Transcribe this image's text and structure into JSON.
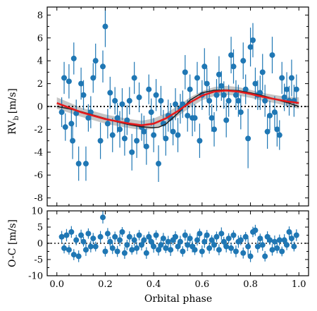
{
  "chart_data": [
    {
      "type": "scatter",
      "panel": "top",
      "ylabel_main": "RV",
      "ylabel_sub": "b",
      "ylabel_unit": "[m/s]",
      "xlim": [
        -0.04,
        1.04
      ],
      "ylim": [
        -8.7,
        8.7
      ],
      "yticks": [
        -8,
        -6,
        -4,
        -2,
        0,
        2,
        4,
        6,
        8
      ],
      "grid": false,
      "colors": {
        "points": "#1f77b4",
        "model": "#e41a1c",
        "keplerian": "#222222",
        "band": "#bbbbbb",
        "zero": "#000000"
      },
      "reference_line": {
        "y": 0,
        "style": "dotted"
      },
      "series": [
        {
          "kind": "data",
          "x": [
            0.02,
            0.03,
            0.035,
            0.05,
            0.06,
            0.065,
            0.07,
            0.08,
            0.09,
            0.1,
            0.11,
            0.12,
            0.13,
            0.14,
            0.15,
            0.16,
            0.18,
            0.19,
            0.2,
            0.21,
            0.22,
            0.23,
            0.24,
            0.25,
            0.26,
            0.27,
            0.28,
            0.29,
            0.3,
            0.31,
            0.32,
            0.33,
            0.34,
            0.35,
            0.36,
            0.37,
            0.38,
            0.39,
            0.4,
            0.41,
            0.42,
            0.43,
            0.44,
            0.45,
            0.46,
            0.47,
            0.48,
            0.49,
            0.5,
            0.51,
            0.52,
            0.53,
            0.54,
            0.55,
            0.56,
            0.57,
            0.58,
            0.59,
            0.6,
            0.61,
            0.62,
            0.63,
            0.64,
            0.65,
            0.66,
            0.67,
            0.68,
            0.69,
            0.7,
            0.71,
            0.72,
            0.73,
            0.74,
            0.75,
            0.76,
            0.77,
            0.78,
            0.79,
            0.8,
            0.81,
            0.82,
            0.83,
            0.84,
            0.85,
            0.86,
            0.87,
            0.88,
            0.89,
            0.9,
            0.91,
            0.92,
            0.93,
            0.94,
            0.95,
            0.96,
            0.97,
            0.98,
            0.99
          ],
          "y": [
            -0.5,
            2.5,
            -1.8,
            2.2,
            -1.5,
            -3,
            4.2,
            -0.6,
            -5,
            2,
            1,
            -5,
            -1,
            -0.5,
            2.5,
            4,
            -3,
            3.5,
            7,
            -1.5,
            1.2,
            -2.5,
            0.5,
            -1,
            -2,
            0.2,
            -2.8,
            -1.2,
            0.5,
            -4,
            2.5,
            -3,
            0.8,
            -1.8,
            -2.2,
            -3.5,
            1.5,
            -0.5,
            -2.5,
            1,
            -5,
            0.5,
            -1.5,
            -2.8,
            -0.8,
            -1,
            -2.2,
            0.2,
            -2.5,
            -0.2,
            0.2,
            3,
            -0.8,
            1.5,
            -1,
            -1,
            2.5,
            -3,
            1,
            3.5,
            2,
            0.5,
            -1,
            -2,
            1,
            2.8,
            1.8,
            1,
            -1.2,
            0.5,
            4.5,
            3.5,
            1,
            0.5,
            -0.5,
            4,
            1.5,
            -2.8,
            5.2,
            5.8,
            2,
            1,
            1.2,
            3,
            0.5,
            -2.2,
            -0.8,
            4.5,
            -0.5,
            -2,
            -2.5,
            2.5,
            0.8,
            1.5,
            0.5,
            2.5,
            0.5,
            1.5
          ],
          "yerr": [
            1.3,
            1.4,
            1.2,
            1.5,
            1.3,
            1.6,
            1.4,
            1.2,
            1.5,
            1.4,
            1.3,
            1.5,
            1.2,
            1.4,
            1.3,
            1.5,
            1.6,
            1.4,
            1.8,
            1.3,
            1.4,
            1.5,
            1.2,
            1.3,
            1.6,
            1.4,
            1.5,
            1.3,
            1.2,
            1.6,
            1.4,
            1.5,
            1.3,
            1.2,
            1.4,
            1.6,
            1.3,
            1.2,
            1.5,
            1.4,
            1.6,
            1.3,
            1.2,
            1.5,
            1.4,
            1.3,
            1.2,
            1.4,
            1.5,
            1.3,
            1.2,
            1.5,
            1.4,
            1.3,
            1.6,
            1.2,
            1.4,
            1.5,
            1.3,
            1.6,
            1.4,
            1.3,
            1.2,
            1.5,
            1.4,
            1.6,
            1.3,
            1.2,
            1.5,
            1.4,
            1.6,
            1.5,
            1.3,
            1.4,
            1.5,
            1.6,
            1.3,
            2.6,
            1.7,
            1.5,
            1.4,
            1.3,
            1.5,
            1.6,
            1.4,
            1.5,
            1.3,
            1.6,
            1.4,
            1.5,
            1.3,
            1.4,
            1.2,
            1.5,
            1.3,
            1.6,
            1.4,
            1.3
          ]
        },
        {
          "kind": "model",
          "x": [
            0.0,
            0.05,
            0.1,
            0.15,
            0.2,
            0.25,
            0.3,
            0.35,
            0.4,
            0.45,
            0.5,
            0.55,
            0.6,
            0.65,
            0.7,
            0.75,
            0.8,
            0.85,
            0.9,
            0.95,
            1.0
          ],
          "y": [
            0.3,
            -0.1,
            -0.5,
            -0.8,
            -1.1,
            -1.3,
            -1.5,
            -1.65,
            -1.5,
            -1.05,
            -0.4,
            0.35,
            0.95,
            1.3,
            1.4,
            1.3,
            1.1,
            0.85,
            0.65,
            0.45,
            0.3
          ]
        },
        {
          "kind": "keplerian",
          "x": [
            0.0,
            0.05,
            0.1,
            0.15,
            0.2,
            0.25,
            0.3,
            0.35,
            0.4,
            0.42,
            0.45,
            0.5,
            0.55,
            0.6,
            0.65,
            0.7,
            0.75,
            0.8,
            0.85,
            0.9,
            0.95,
            1.0
          ],
          "y": [
            0.0,
            -0.2,
            -0.45,
            -0.75,
            -1.05,
            -1.35,
            -1.6,
            -1.78,
            -1.85,
            -1.82,
            -1.55,
            -0.6,
            0.55,
            1.2,
            1.42,
            1.45,
            1.38,
            1.2,
            0.95,
            0.65,
            0.35,
            0.0
          ]
        },
        {
          "kind": "band",
          "x": [
            0.0,
            0.05,
            0.1,
            0.15,
            0.2,
            0.25,
            0.3,
            0.35,
            0.4,
            0.45,
            0.5,
            0.55,
            0.6,
            0.65,
            0.7,
            0.75,
            0.8,
            0.85,
            0.9,
            0.95,
            1.0
          ],
          "lower": [
            -0.2,
            -0.55,
            -0.9,
            -1.2,
            -1.5,
            -1.7,
            -1.9,
            -2.05,
            -1.95,
            -1.5,
            -0.85,
            -0.1,
            0.55,
            0.9,
            1.0,
            0.95,
            0.75,
            0.5,
            0.3,
            0.05,
            -0.2
          ],
          "upper": [
            0.8,
            0.35,
            -0.1,
            -0.4,
            -0.7,
            -0.9,
            -1.1,
            -1.25,
            -1.05,
            -0.6,
            0.05,
            0.8,
            1.35,
            1.7,
            1.8,
            1.7,
            1.45,
            1.2,
            1.0,
            0.85,
            0.8
          ]
        }
      ]
    },
    {
      "type": "scatter",
      "panel": "bottom",
      "ylabel": "O-C [m/s]",
      "xlabel": "Orbital phase",
      "xlim": [
        -0.04,
        1.04
      ],
      "ylim": [
        -10,
        10
      ],
      "yticks": [
        -10,
        -5,
        0,
        5,
        10
      ],
      "xticks": [
        0.0,
        0.2,
        0.4,
        0.6,
        0.8,
        1.0
      ],
      "xtick_labels": [
        "0.0",
        "0.2",
        "0.4",
        "0.6",
        "0.8",
        "1.0"
      ],
      "grid": false,
      "reference_line": {
        "y": 0,
        "style": "dotted"
      },
      "series": [
        {
          "kind": "residuals",
          "x": [
            0.02,
            0.03,
            0.04,
            0.05,
            0.06,
            0.07,
            0.08,
            0.09,
            0.1,
            0.11,
            0.12,
            0.13,
            0.14,
            0.15,
            0.16,
            0.18,
            0.19,
            0.2,
            0.21,
            0.22,
            0.23,
            0.24,
            0.25,
            0.26,
            0.27,
            0.28,
            0.29,
            0.3,
            0.31,
            0.32,
            0.33,
            0.34,
            0.35,
            0.36,
            0.37,
            0.38,
            0.39,
            0.4,
            0.41,
            0.42,
            0.43,
            0.44,
            0.45,
            0.46,
            0.47,
            0.48,
            0.49,
            0.5,
            0.51,
            0.52,
            0.53,
            0.54,
            0.55,
            0.56,
            0.57,
            0.58,
            0.59,
            0.6,
            0.61,
            0.62,
            0.63,
            0.64,
            0.65,
            0.66,
            0.67,
            0.68,
            0.69,
            0.7,
            0.71,
            0.72,
            0.73,
            0.74,
            0.75,
            0.76,
            0.77,
            0.78,
            0.79,
            0.8,
            0.81,
            0.82,
            0.83,
            0.84,
            0.85,
            0.86,
            0.87,
            0.88,
            0.89,
            0.9,
            0.91,
            0.92,
            0.93,
            0.94,
            0.95,
            0.96,
            0.97,
            0.98,
            0.99
          ],
          "y": [
            2,
            -1.5,
            2.5,
            -2,
            3.5,
            -3.5,
            1,
            -4,
            2.5,
            0.5,
            -2,
            3,
            -1,
            1.5,
            -1,
            2,
            8,
            -2.5,
            3,
            0.5,
            -1.5,
            2,
            -2.5,
            1,
            3.5,
            -3,
            -0.5,
            2,
            -2,
            1,
            -1.5,
            2.5,
            -0.5,
            1,
            -3,
            2,
            0.5,
            -1,
            2.5,
            -2,
            -0.5,
            1.5,
            -1.5,
            0.5,
            -2,
            1,
            2,
            -1,
            0.5,
            -2.5,
            2.5,
            -0.5,
            1.5,
            -1,
            -2,
            1,
            3,
            -2.5,
            0.5,
            2.5,
            -1.5,
            1,
            -0.5,
            2,
            -2,
            3,
            0.5,
            -1,
            1.5,
            -1.5,
            2.5,
            -2.5,
            0.5,
            1,
            -3,
            2,
            -1,
            -4,
            3.5,
            4,
            -1,
            1.5,
            -0.5,
            -4,
            2,
            1,
            -2,
            0.5,
            -1.5,
            1,
            -2.5,
            1,
            -0.5,
            3.5,
            1.5,
            -1,
            2.5
          ],
          "yerr": [
            1.8,
            1.6,
            1.9,
            1.5,
            1.8,
            1.7,
            1.6,
            1.8,
            1.7,
            1.5,
            1.9,
            1.6,
            1.8,
            1.7,
            1.5,
            1.8,
            1.9,
            1.6,
            1.7,
            1.5,
            1.8,
            1.6,
            1.7,
            1.9,
            1.5,
            1.8,
            1.6,
            1.7,
            1.5,
            1.8,
            1.9,
            1.6,
            1.7,
            1.5,
            1.8,
            1.6,
            1.7,
            1.9,
            1.5,
            1.8,
            1.6,
            1.7,
            1.5,
            1.8,
            1.9,
            1.6,
            1.7,
            1.5,
            1.8,
            1.6,
            1.7,
            1.9,
            1.5,
            1.8,
            1.6,
            1.7,
            1.5,
            1.8,
            1.9,
            1.6,
            1.7,
            1.5,
            1.8,
            1.6,
            1.7,
            1.9,
            1.5,
            1.8,
            1.6,
            1.7,
            1.5,
            1.8,
            1.9,
            1.6,
            1.7,
            1.5,
            2.8,
            1.8,
            1.6,
            1.7,
            1.9,
            1.5,
            1.8,
            1.6,
            1.7,
            1.5,
            1.8,
            1.9,
            1.6,
            1.7,
            1.5,
            1.8,
            1.6,
            1.7,
            1.9,
            1.5,
            1.8
          ]
        }
      ]
    }
  ]
}
